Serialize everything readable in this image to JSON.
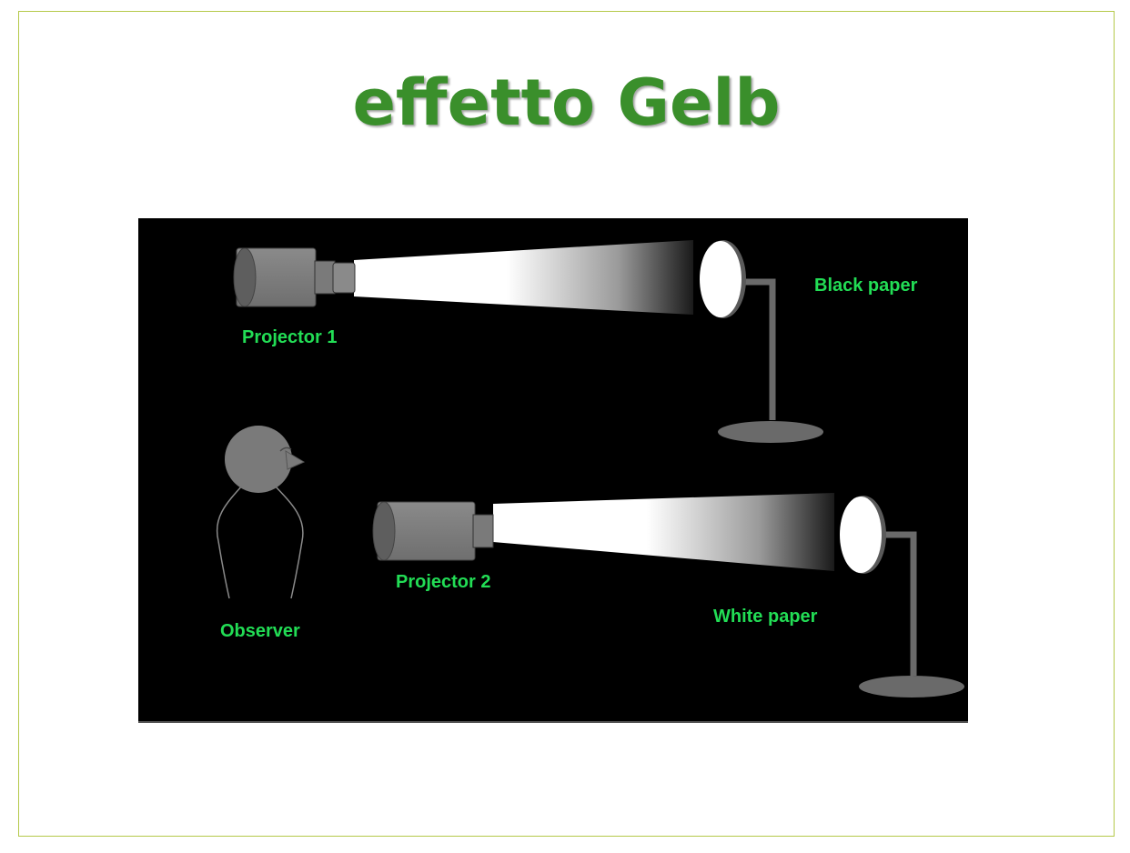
{
  "title": "effetto Gelb",
  "colors": {
    "title": "#3a8f2b",
    "frame": "#b5c94a",
    "label": "#22dd55",
    "background": "#000000",
    "device": "#7a7a7a"
  },
  "labels": {
    "projector1": "Projector 1",
    "projector2": "Projector 2",
    "observer": "Observer",
    "black_paper": "Black paper",
    "white_paper": "White paper"
  }
}
